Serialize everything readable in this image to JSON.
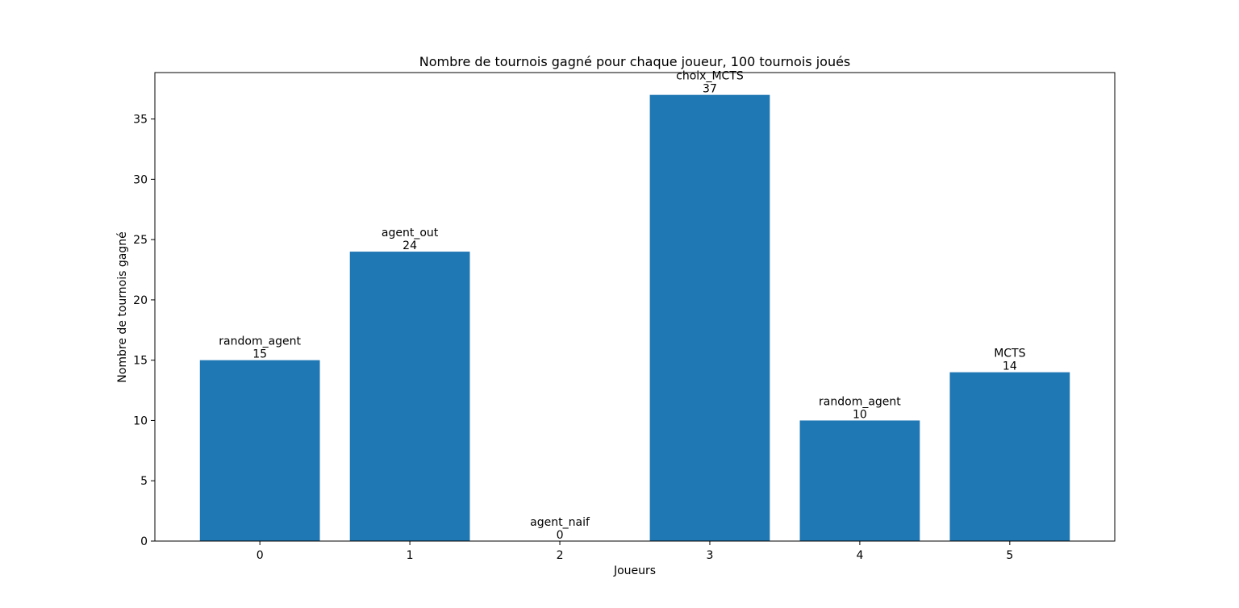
{
  "chart_data": {
    "type": "bar",
    "title": "Nombre de tournois gagné pour chaque joueur, 100 tournois joués",
    "xlabel": "Joueurs",
    "ylabel": "Nombre de tournois gagné",
    "categories": [
      "0",
      "1",
      "2",
      "3",
      "4",
      "5"
    ],
    "values": [
      15,
      24,
      0,
      37,
      10,
      14
    ],
    "bar_labels": [
      "random_agent",
      "agent_out",
      "agent_naif",
      "choix_MCTS",
      "random_agent",
      "MCTS"
    ],
    "yticks": [
      0,
      5,
      10,
      15,
      20,
      25,
      30,
      35
    ],
    "ylim": [
      0,
      38.85
    ],
    "xlim": [
      -0.7,
      5.7
    ],
    "bar_color": "#1f77b4",
    "grid": false,
    "legend": "none"
  }
}
